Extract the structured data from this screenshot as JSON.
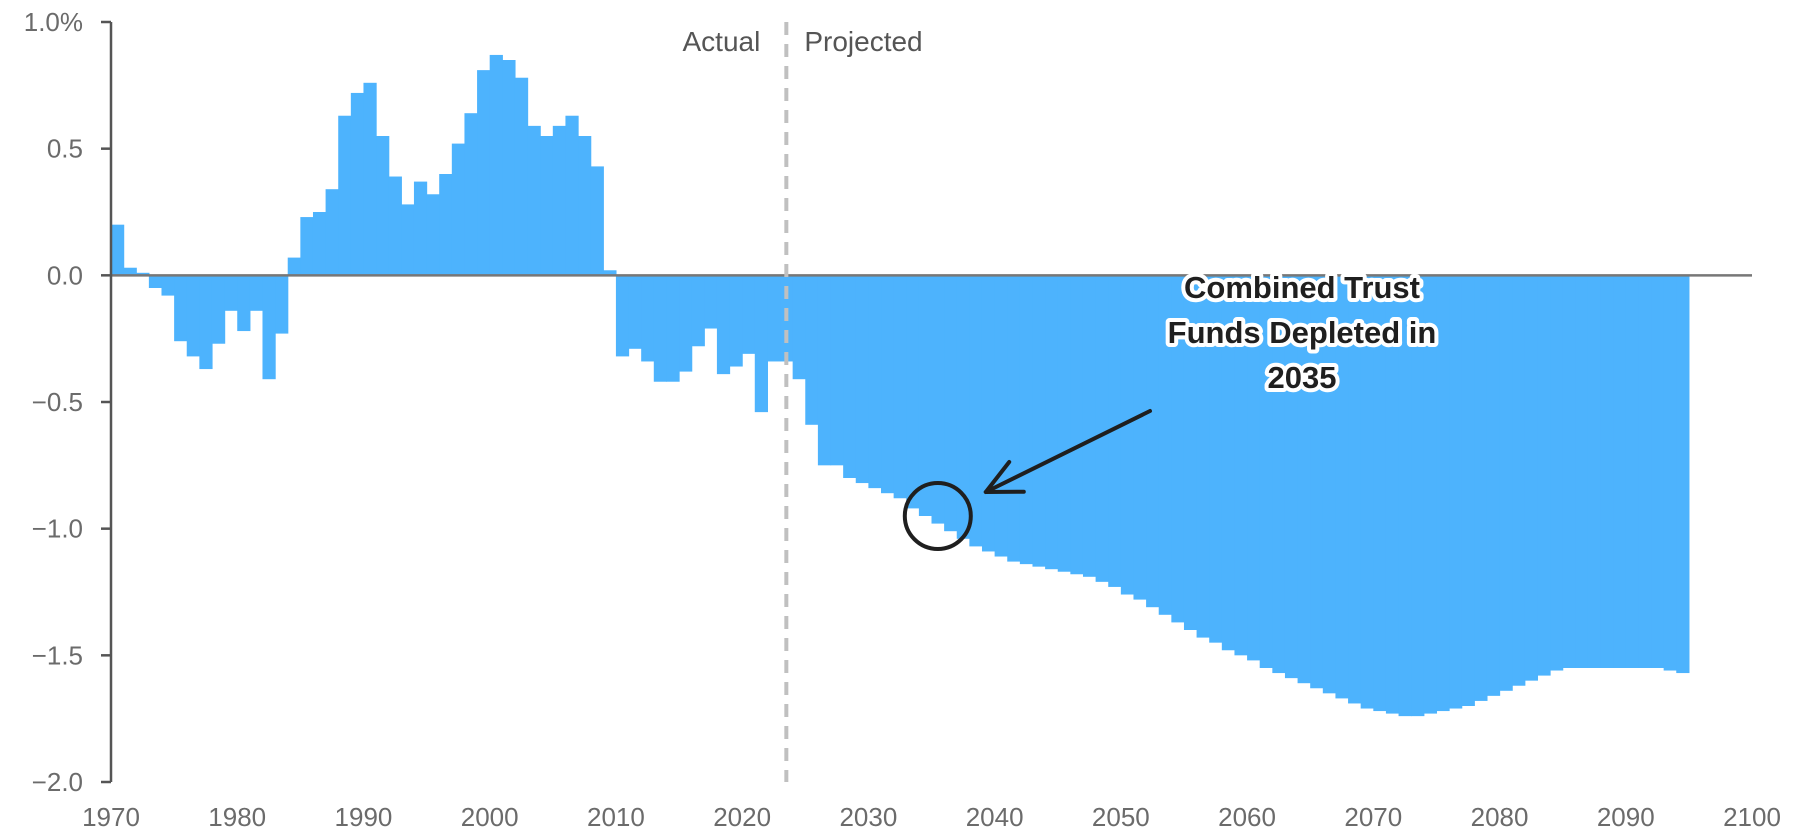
{
  "chart_data": {
    "type": "bar",
    "x_start": 1970,
    "x_end": 2100,
    "ylim": [
      -2.0,
      1.0
    ],
    "xlim": [
      1970,
      2100
    ],
    "y_ticks": [
      1.0,
      0.5,
      0.0,
      -0.5,
      -1.0,
      -1.5,
      -2.0
    ],
    "y_tick_labels": [
      "1.0%",
      "0.5",
      "0.0",
      "−0.5",
      "−1.0",
      "−1.5",
      "−2.0"
    ],
    "x_ticks": [
      1970,
      1980,
      1990,
      2000,
      2010,
      2020,
      2030,
      2040,
      2050,
      2060,
      2070,
      2080,
      2090,
      2100
    ],
    "x_tick_labels": [
      "1970",
      "1980",
      "1990",
      "2000",
      "2010",
      "2020",
      "2030",
      "2040",
      "2050",
      "2060",
      "2070",
      "2080",
      "2090",
      "2100"
    ],
    "divider_year": 2023.5,
    "region_labels": {
      "actual": "Actual",
      "projected": "Projected"
    },
    "annotation": {
      "lines": [
        "Combined Trust",
        "Funds Depleted in",
        "2035"
      ],
      "target_year": 2035,
      "target_value": -0.95
    },
    "bar_color": "#4db3fd",
    "divider_color": "#c0c0c0",
    "values": [
      0.2,
      0.03,
      0.01,
      -0.05,
      -0.08,
      -0.26,
      -0.32,
      -0.37,
      -0.27,
      -0.14,
      -0.22,
      -0.14,
      -0.41,
      -0.23,
      0.07,
      0.23,
      0.25,
      0.34,
      0.63,
      0.72,
      0.76,
      0.55,
      0.39,
      0.28,
      0.37,
      0.32,
      0.4,
      0.52,
      0.64,
      0.81,
      0.87,
      0.85,
      0.78,
      0.59,
      0.55,
      0.59,
      0.63,
      0.55,
      0.43,
      0.02,
      -0.32,
      -0.29,
      -0.34,
      -0.42,
      -0.42,
      -0.38,
      -0.28,
      -0.21,
      -0.39,
      -0.36,
      -0.31,
      -0.54,
      -0.34,
      -0.34,
      -0.41,
      -0.59,
      -0.75,
      -0.75,
      -0.8,
      -0.82,
      -0.84,
      -0.86,
      -0.88,
      -0.92,
      -0.95,
      -0.98,
      -1.01,
      -1.04,
      -1.07,
      -1.09,
      -1.11,
      -1.13,
      -1.14,
      -1.15,
      -1.16,
      -1.17,
      -1.18,
      -1.19,
      -1.21,
      -1.23,
      -1.26,
      -1.28,
      -1.31,
      -1.34,
      -1.37,
      -1.4,
      -1.43,
      -1.45,
      -1.48,
      -1.5,
      -1.52,
      -1.55,
      -1.57,
      -1.59,
      -1.61,
      -1.63,
      -1.65,
      -1.67,
      -1.69,
      -1.71,
      -1.72,
      -1.73,
      -1.74,
      -1.74,
      -1.73,
      -1.72,
      -1.71,
      -1.7,
      -1.68,
      -1.66,
      -1.64,
      -1.62,
      -1.6,
      -1.58,
      -1.56,
      -1.55,
      -1.55,
      -1.55,
      -1.55,
      -1.55,
      -1.55,
      -1.55,
      -1.55,
      -1.56,
      -1.57
    ]
  }
}
